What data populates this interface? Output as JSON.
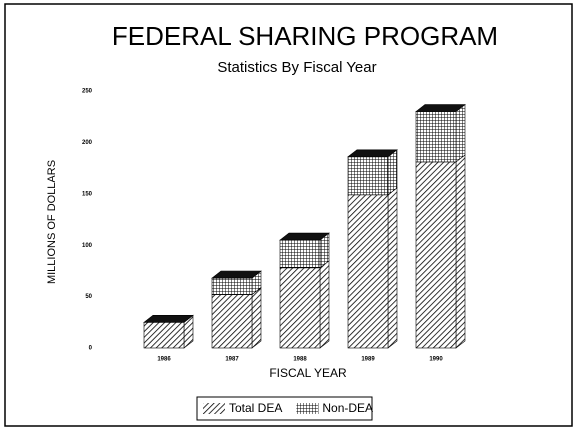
{
  "chart_data": {
    "type": "bar",
    "stacked": true,
    "title": "FEDERAL SHARING PROGRAM",
    "subtitle": "Statistics By Fiscal Year",
    "xlabel": "FISCAL YEAR",
    "ylabel": "MILLIONS OF DOLLARS",
    "categories": [
      "1986",
      "1987",
      "1988",
      "1989",
      "1990"
    ],
    "series": [
      {
        "name": "Total DEA",
        "color": "#000000",
        "pattern": "diagonal",
        "values": [
          25,
          52,
          78,
          149,
          181
        ]
      },
      {
        "name": "Non-DEA",
        "color": "#000000",
        "pattern": "crosshatch",
        "values": [
          0,
          16,
          27,
          37,
          49
        ]
      }
    ],
    "ylim": [
      0,
      250
    ],
    "yticks": [
      0,
      50,
      100,
      150,
      200,
      250
    ],
    "grid": false,
    "legend": "bottom"
  }
}
